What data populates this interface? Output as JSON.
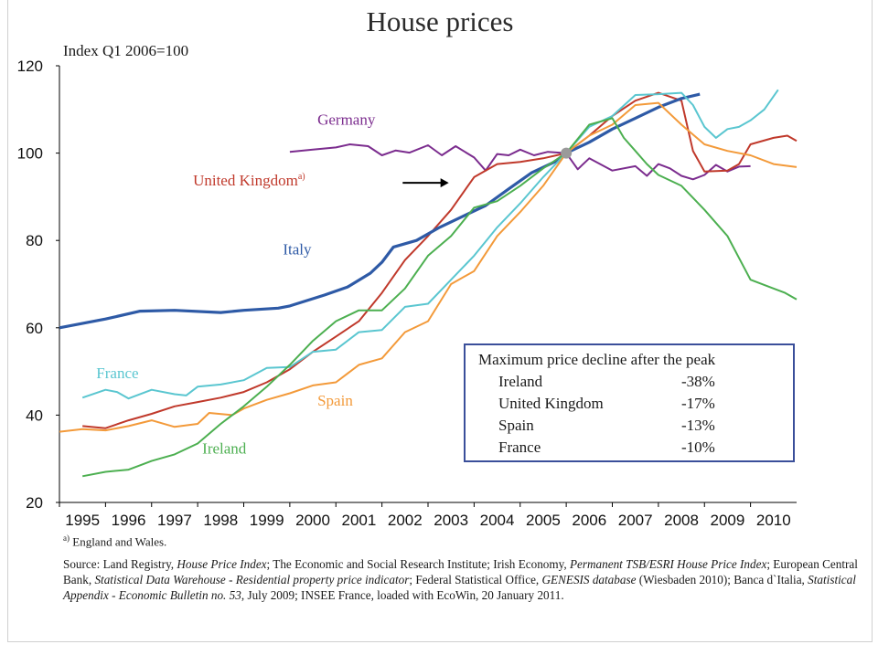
{
  "title": "House prices",
  "ylabel": "Index Q1 2006=100",
  "footnote_mark": "a)",
  "footnote_text": "England and Wales.",
  "source": {
    "p1": "Source: Land Registry, ",
    "i1": "House Price Index",
    "p2": "; The Economic and Social Research Institute; Irish Economy, ",
    "i2": "Permanent TSB/ESRI House Price Index",
    "p3": "; European Central Bank, ",
    "i3": "Statistical Data Warehouse - Residential property price indicator",
    "p4": "; Federal Statistical Office, ",
    "i4": "GENESIS database",
    "p5": " (Wiesbaden 2010); Banca d`Italia, ",
    "i5": "Statistical Appendix - Economic Bulletin no. 53",
    "p6": ", July 2009; INSEE France, loaded with EcoWin, 20 January 2011."
  },
  "decline_table": {
    "title": "Maximum price decline after the peak",
    "rows": [
      {
        "country": "Ireland",
        "value": "-38%"
      },
      {
        "country": "United Kingdom",
        "value": "-17%"
      },
      {
        "country": "Spain",
        "value": "-13%"
      },
      {
        "country": "France",
        "value": "-10%"
      }
    ]
  },
  "chart_data": {
    "type": "line",
    "title": "House prices",
    "ylabel": "Index Q1 2006=100",
    "ylim": [
      20,
      120
    ],
    "yticks": [
      20,
      40,
      60,
      80,
      100,
      120
    ],
    "xlim": [
      1995,
      2011
    ],
    "xticks": [
      "1995",
      "1996",
      "1997",
      "1998",
      "1999",
      "2000",
      "2001",
      "2002",
      "2003",
      "2004",
      "2005",
      "2006",
      "2007",
      "2008",
      "2009",
      "2010"
    ],
    "grid": false,
    "reference_point": {
      "x": 2006.0,
      "y": 100
    },
    "annotation": {
      "text": "United Kingdom",
      "sup": "a)",
      "arrow": true
    },
    "series": [
      {
        "name": "Germany",
        "color": "#7b2c8e",
        "label_x": 2000.6,
        "label_y": 106.5,
        "points": [
          [
            2000.0,
            100.3
          ],
          [
            2000.5,
            100.8
          ],
          [
            2001.0,
            101.3
          ],
          [
            2001.3,
            102.0
          ],
          [
            2001.7,
            101.6
          ],
          [
            2002.0,
            99.5
          ],
          [
            2002.3,
            100.6
          ],
          [
            2002.6,
            100.1
          ],
          [
            2003.0,
            101.8
          ],
          [
            2003.3,
            99.5
          ],
          [
            2003.6,
            101.6
          ],
          [
            2004.0,
            99.0
          ],
          [
            2004.25,
            96.0
          ],
          [
            2004.5,
            99.8
          ],
          [
            2004.75,
            99.5
          ],
          [
            2005.0,
            100.8
          ],
          [
            2005.3,
            99.5
          ],
          [
            2005.6,
            100.3
          ],
          [
            2006.0,
            100
          ],
          [
            2006.25,
            96.3
          ],
          [
            2006.5,
            98.8
          ],
          [
            2007.0,
            96.0
          ],
          [
            2007.5,
            97.0
          ],
          [
            2007.75,
            94.8
          ],
          [
            2008.0,
            97.5
          ],
          [
            2008.25,
            96.5
          ],
          [
            2008.5,
            94.8
          ],
          [
            2008.75,
            94.0
          ],
          [
            2009.0,
            95.0
          ],
          [
            2009.25,
            97.3
          ],
          [
            2009.5,
            95.8
          ],
          [
            2009.75,
            96.9
          ],
          [
            2010.0,
            97.0
          ]
        ]
      },
      {
        "name": "United Kingdom",
        "color": "#c0392b",
        "points": [
          [
            1995.5,
            37.5
          ],
          [
            1996.0,
            37.0
          ],
          [
            1996.5,
            38.8
          ],
          [
            1997.0,
            40.3
          ],
          [
            1997.5,
            42.0
          ],
          [
            1998.0,
            43.0
          ],
          [
            1998.5,
            44.0
          ],
          [
            1999.0,
            45.3
          ],
          [
            1999.5,
            47.5
          ],
          [
            2000.0,
            50.5
          ],
          [
            2000.5,
            54.5
          ],
          [
            2001.0,
            58.0
          ],
          [
            2001.5,
            61.5
          ],
          [
            2002.0,
            68.0
          ],
          [
            2002.5,
            75.5
          ],
          [
            2003.0,
            81.0
          ],
          [
            2003.5,
            87.0
          ],
          [
            2004.0,
            94.5
          ],
          [
            2004.5,
            97.5
          ],
          [
            2005.0,
            98.0
          ],
          [
            2005.5,
            98.8
          ],
          [
            2006.0,
            100
          ],
          [
            2006.5,
            104.0
          ],
          [
            2007.0,
            108.5
          ],
          [
            2007.5,
            112.0
          ],
          [
            2008.0,
            113.8
          ],
          [
            2008.5,
            112.0
          ],
          [
            2008.75,
            100.5
          ],
          [
            2009.0,
            95.8
          ],
          [
            2009.5,
            96.0
          ],
          [
            2009.75,
            97.5
          ],
          [
            2010.0,
            102.0
          ],
          [
            2010.5,
            103.5
          ],
          [
            2010.8,
            104.0
          ],
          [
            2011.0,
            102.8
          ]
        ]
      },
      {
        "name": "Italy",
        "color": "#2e5aa6",
        "label_x": 1999.85,
        "label_y": 76.8,
        "points": [
          [
            1995.0,
            60.0
          ],
          [
            1996.0,
            62.0
          ],
          [
            1996.75,
            63.8
          ],
          [
            1997.5,
            64.0
          ],
          [
            1998.5,
            63.5
          ],
          [
            1999.0,
            64.0
          ],
          [
            1999.75,
            64.5
          ],
          [
            2000.0,
            65.0
          ],
          [
            2000.75,
            67.5
          ],
          [
            2001.25,
            69.3
          ],
          [
            2001.75,
            72.5
          ],
          [
            2002.0,
            75.0
          ],
          [
            2002.25,
            78.5
          ],
          [
            2002.75,
            80.0
          ],
          [
            2003.25,
            83.0
          ],
          [
            2003.75,
            85.5
          ],
          [
            2004.25,
            88.0
          ],
          [
            2004.75,
            91.8
          ],
          [
            2005.25,
            95.5
          ],
          [
            2005.75,
            98.0
          ],
          [
            2006.0,
            100
          ],
          [
            2006.5,
            102.5
          ],
          [
            2007.0,
            105.5
          ],
          [
            2007.5,
            108.0
          ],
          [
            2008.0,
            110.5
          ],
          [
            2008.5,
            112.5
          ],
          [
            2008.9,
            113.5
          ]
        ]
      },
      {
        "name": "France",
        "color": "#5ac6d0",
        "label_x": 1995.8,
        "label_y": 48.5,
        "points": [
          [
            1995.5,
            44.0
          ],
          [
            1996.0,
            45.8
          ],
          [
            1996.25,
            45.3
          ],
          [
            1996.5,
            43.8
          ],
          [
            1997.0,
            45.8
          ],
          [
            1997.5,
            44.8
          ],
          [
            1997.75,
            44.5
          ],
          [
            1998.0,
            46.5
          ],
          [
            1998.5,
            47.0
          ],
          [
            1999.0,
            48.0
          ],
          [
            1999.5,
            50.8
          ],
          [
            2000.0,
            51.0
          ],
          [
            2000.5,
            54.5
          ],
          [
            2001.0,
            55.0
          ],
          [
            2001.5,
            59.0
          ],
          [
            2002.0,
            59.5
          ],
          [
            2002.5,
            64.8
          ],
          [
            2003.0,
            65.5
          ],
          [
            2003.5,
            71.0
          ],
          [
            2004.0,
            76.5
          ],
          [
            2004.5,
            83.0
          ],
          [
            2005.0,
            88.5
          ],
          [
            2005.5,
            94.5
          ],
          [
            2006.0,
            100
          ],
          [
            2006.5,
            106.0
          ],
          [
            2007.0,
            108.5
          ],
          [
            2007.5,
            113.3
          ],
          [
            2008.0,
            113.5
          ],
          [
            2008.5,
            113.8
          ],
          [
            2008.75,
            111.0
          ],
          [
            2009.0,
            106.0
          ],
          [
            2009.25,
            103.5
          ],
          [
            2009.5,
            105.5
          ],
          [
            2009.75,
            106.0
          ],
          [
            2010.0,
            107.5
          ],
          [
            2010.3,
            110.0
          ],
          [
            2010.6,
            114.5
          ]
        ]
      },
      {
        "name": "Spain",
        "color": "#f39a3a",
        "label_x": 2000.6,
        "label_y": 42.2,
        "points": [
          [
            1995.0,
            36.2
          ],
          [
            1995.5,
            36.8
          ],
          [
            1996.0,
            36.5
          ],
          [
            1996.5,
            37.5
          ],
          [
            1997.0,
            38.8
          ],
          [
            1997.5,
            37.3
          ],
          [
            1998.0,
            38.0
          ],
          [
            1998.25,
            40.5
          ],
          [
            1998.75,
            40.0
          ],
          [
            1999.0,
            41.5
          ],
          [
            1999.5,
            43.5
          ],
          [
            2000.0,
            45.0
          ],
          [
            2000.5,
            46.8
          ],
          [
            2001.0,
            47.5
          ],
          [
            2001.5,
            51.5
          ],
          [
            2002.0,
            53.0
          ],
          [
            2002.5,
            59.0
          ],
          [
            2003.0,
            61.5
          ],
          [
            2003.5,
            70.0
          ],
          [
            2004.0,
            73.0
          ],
          [
            2004.5,
            81.0
          ],
          [
            2005.0,
            86.5
          ],
          [
            2005.5,
            92.5
          ],
          [
            2006.0,
            100
          ],
          [
            2006.5,
            104.0
          ],
          [
            2007.0,
            106.5
          ],
          [
            2007.5,
            111.0
          ],
          [
            2008.0,
            111.5
          ],
          [
            2008.5,
            106.5
          ],
          [
            2009.0,
            102.0
          ],
          [
            2009.5,
            100.5
          ],
          [
            2010.0,
            99.5
          ],
          [
            2010.5,
            97.5
          ],
          [
            2011.0,
            96.8
          ]
        ]
      },
      {
        "name": "Ireland",
        "color": "#4caf50",
        "label_x": 1998.1,
        "label_y": 31.2,
        "points": [
          [
            1995.5,
            26.0
          ],
          [
            1996.0,
            27.0
          ],
          [
            1996.5,
            27.5
          ],
          [
            1997.0,
            29.5
          ],
          [
            1997.5,
            31.0
          ],
          [
            1998.0,
            33.5
          ],
          [
            1998.5,
            38.0
          ],
          [
            1999.0,
            42.0
          ],
          [
            1999.5,
            46.5
          ],
          [
            2000.0,
            51.5
          ],
          [
            2000.5,
            57.0
          ],
          [
            2001.0,
            61.5
          ],
          [
            2001.5,
            64.0
          ],
          [
            2002.0,
            64.0
          ],
          [
            2002.5,
            69.0
          ],
          [
            2003.0,
            76.5
          ],
          [
            2003.5,
            81.0
          ],
          [
            2004.0,
            87.5
          ],
          [
            2004.5,
            89.0
          ],
          [
            2005.0,
            92.5
          ],
          [
            2005.5,
            96.5
          ],
          [
            2006.0,
            100
          ],
          [
            2006.5,
            106.5
          ],
          [
            2007.0,
            108.0
          ],
          [
            2007.25,
            103.5
          ],
          [
            2007.5,
            100.5
          ],
          [
            2007.75,
            97.5
          ],
          [
            2008.0,
            95.0
          ],
          [
            2008.5,
            92.5
          ],
          [
            2009.0,
            87.0
          ],
          [
            2009.5,
            81.0
          ],
          [
            2009.75,
            76.0
          ],
          [
            2010.0,
            71.0
          ],
          [
            2010.5,
            69.0
          ],
          [
            2010.75,
            68.0
          ],
          [
            2011.0,
            66.5
          ]
        ]
      }
    ]
  }
}
